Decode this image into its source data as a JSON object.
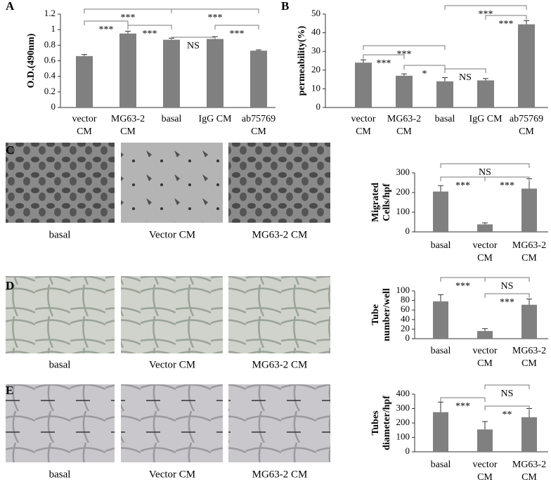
{
  "image_rows": [
    {
      "captions": [
        "basal",
        "Vector CM",
        "MG63-2 CM"
      ]
    },
    {
      "captions": [
        "basal",
        "Vector CM",
        "MG63-2 CM"
      ]
    },
    {
      "captions": [
        "basal",
        "Vector CM",
        "MG63-2 CM"
      ]
    }
  ],
  "chart_data": [
    {
      "type": "bar",
      "panel": "A",
      "ylabel": "O.D.(490nm)",
      "categories": [
        "vector\nCM",
        "MG63-2\nCM",
        "basal",
        "IgG CM",
        "ab75769\nCM"
      ],
      "values": [
        0.66,
        0.95,
        0.87,
        0.88,
        0.73
      ],
      "errors": [
        0.02,
        0.03,
        0.02,
        0.03,
        0.01
      ],
      "color": "#808080",
      "ylim": [
        0,
        1.2
      ],
      "yticks": [
        0,
        0.2,
        0.4,
        0.6,
        0.8,
        1,
        1.2
      ],
      "annotations": [
        "***",
        "***",
        "***",
        "***",
        "NS",
        "***"
      ]
    },
    {
      "type": "bar",
      "panel": "B",
      "ylabel": "permeability(%)",
      "categories": [
        "vector\nCM",
        "MG63-2\nCM",
        "basal",
        "IgG CM",
        "ab75769\nCM"
      ],
      "values": [
        24,
        17,
        14,
        14.5,
        44.5
      ],
      "errors": [
        1.5,
        1,
        2,
        1,
        2
      ],
      "color": "#808080",
      "ylim": [
        0,
        50
      ],
      "yticks": [
        0,
        10,
        20,
        30,
        40,
        50
      ],
      "annotations": [
        "***",
        "***",
        "***",
        "***",
        "*",
        "NS"
      ]
    },
    {
      "type": "bar",
      "panel": "C",
      "ylabel": "Migrated\nCells/hpf",
      "categories": [
        "basal",
        "vector\nCM",
        "MG63-2\nCM"
      ],
      "values": [
        205,
        38,
        220
      ],
      "errors": [
        30,
        8,
        50
      ],
      "color": "#808080",
      "ylim": [
        0,
        300
      ],
      "yticks": [
        0,
        100,
        200,
        300
      ],
      "annotations": [
        "NS",
        "***",
        "***"
      ]
    },
    {
      "type": "bar",
      "panel": "D",
      "ylabel": "Tube\nnumber/well",
      "categories": [
        "basal",
        "vector\nCM",
        "MG63-2\nCM"
      ],
      "values": [
        78,
        16,
        71
      ],
      "errors": [
        14,
        5,
        12
      ],
      "color": "#808080",
      "ylim": [
        0,
        100
      ],
      "yticks": [
        0,
        20,
        40,
        60,
        80,
        100
      ],
      "annotations": [
        "***",
        "NS",
        "***"
      ]
    },
    {
      "type": "bar",
      "panel": "E",
      "ylabel": "Tubes\ndiameter/hpf",
      "categories": [
        "basal",
        "vector\nCM",
        "MG63-2\nCM"
      ],
      "values": [
        275,
        155,
        240
      ],
      "errors": [
        70,
        55,
        60
      ],
      "color": "#808080",
      "ylim": [
        0,
        400
      ],
      "yticks": [
        0,
        100,
        200,
        300,
        400
      ],
      "annotations": [
        "***",
        "NS",
        "**"
      ]
    }
  ]
}
